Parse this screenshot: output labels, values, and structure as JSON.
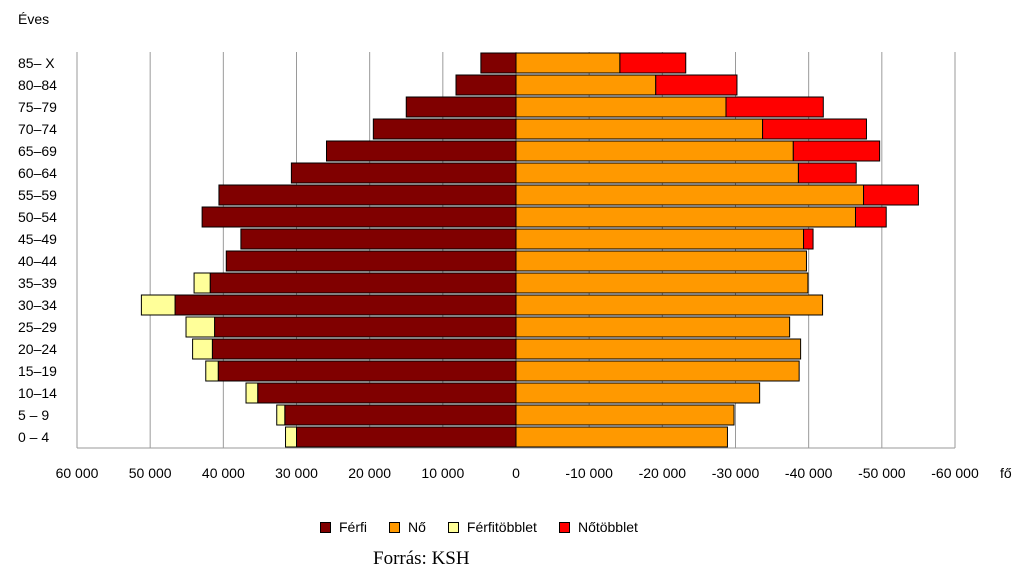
{
  "chart_data": {
    "type": "bar",
    "orientation": "horizontal",
    "title": "",
    "ylabel": "Éves",
    "xlabel_unit": "fő",
    "categories": [
      "85– X",
      "80–84",
      "75–79",
      "70–74",
      "65–69",
      "60–64",
      "55–59",
      "50–54",
      "45–49",
      "40–44",
      "35–39",
      "30–34",
      "25–29",
      "20–24",
      "15–19",
      "10–14",
      "5 – 9",
      "0 – 4"
    ],
    "x_ticks": [
      "60 000",
      "50 000",
      "40 000",
      "30 000",
      "20 000",
      "10 000",
      "0",
      "-10 000",
      "-20 000",
      "-30 000",
      "-40 000",
      "-50 000",
      "-60 000"
    ],
    "xlim": [
      -60000,
      60000
    ],
    "grid": true,
    "legend_position": "bottom",
    "series": [
      {
        "name": "Férfi",
        "color": "#800000",
        "side": "left",
        "values": [
          4800,
          8200,
          15000,
          19500,
          25900,
          30700,
          40600,
          42900,
          37600,
          39600,
          41800,
          46600,
          41200,
          41500,
          40700,
          35300,
          31600,
          30000
        ]
      },
      {
        "name": "Nő",
        "color": "#FF9900",
        "side": "right",
        "values": [
          14200,
          19100,
          28700,
          33700,
          37900,
          38600,
          47500,
          46400,
          39300,
          39700,
          39900,
          41900,
          37400,
          38900,
          38700,
          33300,
          29800,
          28900
        ]
      },
      {
        "name": "Férfitöbblet",
        "color": "#FFFF99",
        "side": "left",
        "values": [
          0,
          0,
          0,
          0,
          0,
          0,
          0,
          0,
          0,
          0,
          2200,
          4600,
          3900,
          2700,
          1700,
          1600,
          1100,
          1500
        ]
      },
      {
        "name": "Nőtöbblet",
        "color": "#FF0000",
        "side": "right",
        "values": [
          9000,
          11100,
          13300,
          14200,
          11800,
          7900,
          7500,
          4200,
          1300,
          0,
          0,
          0,
          0,
          0,
          0,
          0,
          0,
          0
        ]
      }
    ]
  },
  "source_text": "Forrás: KSH"
}
